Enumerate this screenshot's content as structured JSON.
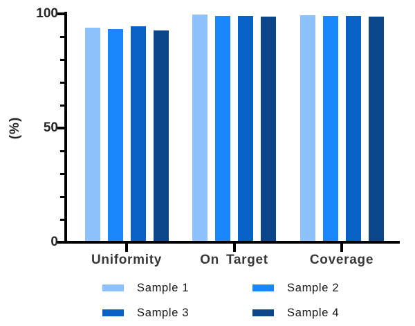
{
  "chart_data": {
    "type": "bar",
    "title": "",
    "ylabel": "(%)",
    "categories": [
      "Uniformity",
      "On Target",
      "Coverage"
    ],
    "series": [
      {
        "name": "Sample 1",
        "color": "#8EC2FC",
        "values": [
          94.0,
          99.7,
          99.5
        ]
      },
      {
        "name": "Sample 2",
        "color": "#1986FB",
        "values": [
          93.2,
          99.0,
          99.2
        ]
      },
      {
        "name": "Sample 3",
        "color": "#0862C6",
        "values": [
          94.6,
          99.2,
          99.0
        ]
      },
      {
        "name": "Sample 4",
        "color": "#0A4689",
        "values": [
          92.7,
          98.8,
          98.8
        ]
      }
    ],
    "ylim": [
      0,
      100
    ],
    "yticks_major": [
      0,
      50,
      100
    ],
    "ytick_minor_step": 10,
    "grid": false,
    "legend_position": "bottom",
    "colors": {
      "axis": "#000000",
      "tick_label_text": "#262626",
      "category_label_text": "#373737",
      "legend_text": "#161616",
      "background": "#ffffff"
    }
  }
}
